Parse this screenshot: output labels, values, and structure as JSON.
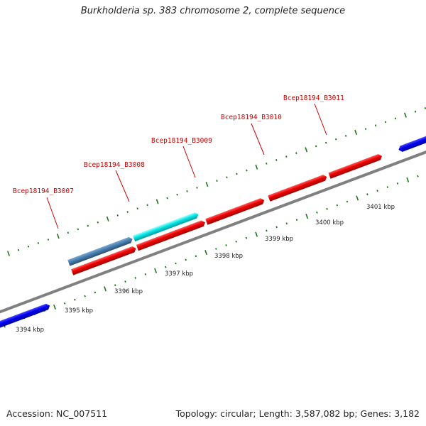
{
  "title": "Burkholderia sp. 383 chromosome 2, complete sequence",
  "footer": {
    "accession": "Accession: NC_007511",
    "summary": "Topology: circular; Length: 3,587,082 bp; Genes: 3,182"
  },
  "kbp_labels": [
    "3394 kbp",
    "3395 kbp",
    "3396 kbp",
    "3397 kbp",
    "3398 kbp",
    "3399 kbp",
    "3400 kbp",
    "3401 kbp"
  ],
  "gene_labels": [
    "Bcep18194_B3007",
    "Bcep18194_B3008",
    "Bcep18194_B3009",
    "Bcep18194_B3010",
    "Bcep18194_B3011"
  ],
  "colors": {
    "backbone": "#808080",
    "forward_gene": "#ee0000",
    "reverse_gene": "#0000ee",
    "highlight_gene": "#00e6e6",
    "steel_gene": "#4a7fb0",
    "tick": "#1a7a1a",
    "label": "#cc0000"
  }
}
